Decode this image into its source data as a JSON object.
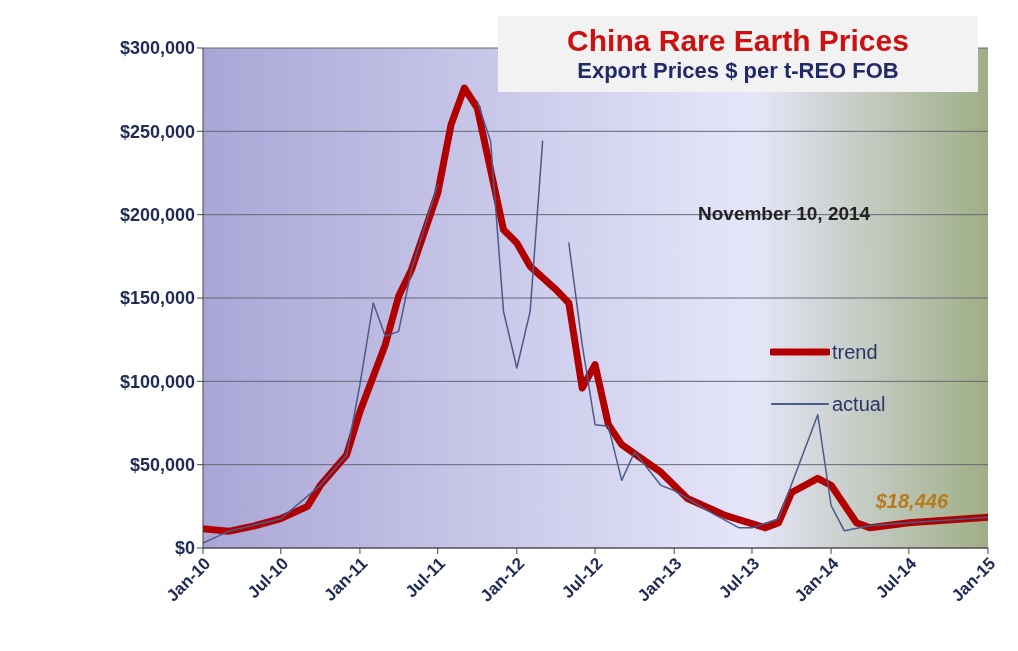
{
  "chart_data": {
    "type": "line",
    "title": "China Rare Earth Prices",
    "subtitle": "Export Prices $ per t-REO FOB",
    "annotations": [
      "November 10, 2014",
      {
        "text": "$18,446",
        "x": "2015-01",
        "y": 18446
      }
    ],
    "series": [
      {
        "name": "trend",
        "color": "#b00000",
        "x": [
          "2010-01",
          "2010-03",
          "2010-05",
          "2010-07",
          "2010-09",
          "2010-10",
          "2010-12",
          "2011-01",
          "2011-03",
          "2011-04",
          "2011-05",
          "2011-07",
          "2011-08",
          "2011-09",
          "2011-10",
          "2011-12",
          "2012-01",
          "2012-02",
          "2012-04",
          "2012-05",
          "2012-06",
          "2012-07",
          "2012-08",
          "2012-09",
          "2012-12",
          "2013-02",
          "2013-05",
          "2013-08",
          "2013-09",
          "2013-10",
          "2013-12",
          "2014-01",
          "2014-03",
          "2014-04",
          "2014-07",
          "2015-01"
        ],
        "values": [
          11500,
          10000,
          13300,
          17600,
          25000,
          37600,
          55800,
          81800,
          122000,
          151000,
          167000,
          213000,
          254000,
          276000,
          264000,
          191000,
          183000,
          169000,
          155000,
          147000,
          96000,
          110000,
          74000,
          62000,
          45500,
          29700,
          19400,
          12100,
          15200,
          33300,
          41800,
          37600,
          15200,
          12100,
          15200,
          18446
        ]
      },
      {
        "name": "actual",
        "color": "#4a5a8a",
        "x": [
          "2010-01",
          "2010-03",
          "2010-07",
          "2010-10",
          "2010-12",
          "2011-01",
          "2011-02",
          "2011-03",
          "2011-04",
          "2011-05",
          "2011-07",
          "2011-08",
          "2011-09",
          "2011-10",
          "2011-11",
          "2011-12",
          "2012-01",
          "2012-02",
          "2012-03",
          "2012-04",
          "2012-05",
          "2012-06",
          "2012-07",
          "2012-08",
          "2012-09",
          "2012-10",
          "2012-12",
          "2013-01",
          "2013-04",
          "2013-06",
          "2013-07",
          "2013-09",
          "2013-12",
          "2014-01",
          "2014-02",
          "2014-04",
          "2014-07",
          "2015-01"
        ],
        "values": [
          3000,
          10000,
          17600,
          37600,
          55800,
          98000,
          147000,
          127000,
          130000,
          167000,
          218000,
          null,
          null,
          268000,
          244000,
          142000,
          108000,
          142000,
          244000,
          null,
          183000,
          122000,
          74000,
          73000,
          40600,
          57600,
          37600,
          34500,
          20600,
          12100,
          12100,
          17600,
          80000,
          25500,
          10300,
          13300,
          15200,
          18446
        ]
      }
    ],
    "xlim": [
      "2010-01",
      "2015-01"
    ],
    "xticks": [
      {
        "value": "2010-01",
        "label": "Jan-10"
      },
      {
        "value": "2010-07",
        "label": "Jul-10"
      },
      {
        "value": "2011-01",
        "label": "Jan-11"
      },
      {
        "value": "2011-07",
        "label": "Jul-11"
      },
      {
        "value": "2012-01",
        "label": "Jan-12"
      },
      {
        "value": "2012-07",
        "label": "Jul-12"
      },
      {
        "value": "2013-01",
        "label": "Jan-13"
      },
      {
        "value": "2013-07",
        "label": "Jul-13"
      },
      {
        "value": "2014-01",
        "label": "Jan-14"
      },
      {
        "value": "2014-07",
        "label": "Jul-14"
      },
      {
        "value": "2015-01",
        "label": "Jan-15"
      }
    ],
    "ylim": [
      0,
      300000
    ],
    "yticks": [
      {
        "value": 0,
        "label": "$0"
      },
      {
        "value": 50000,
        "label": "$50,000"
      },
      {
        "value": 100000,
        "label": "$100,000"
      },
      {
        "value": 150000,
        "label": "$150,000"
      },
      {
        "value": 200000,
        "label": "$200,000"
      },
      {
        "value": 250000,
        "label": "$250,000"
      },
      {
        "value": 300000,
        "label": "$300,000"
      }
    ],
    "grid": "y",
    "legend": "right",
    "marker": "none",
    "line_style": "solid"
  }
}
